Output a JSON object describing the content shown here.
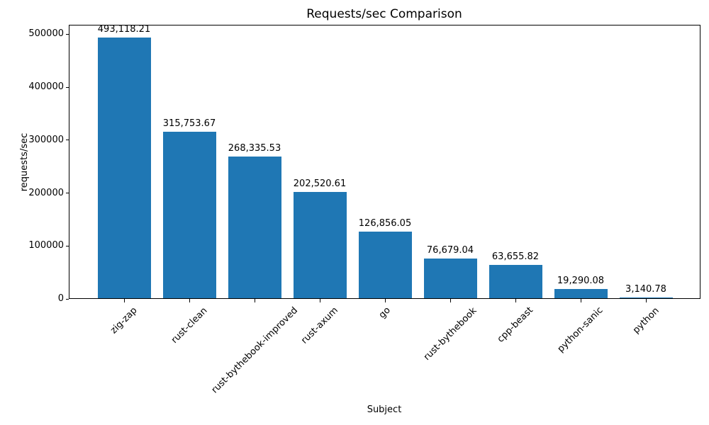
{
  "chart_data": {
    "type": "bar",
    "title": "Requests/sec Comparison",
    "xlabel": "Subject",
    "ylabel": "requests/sec",
    "categories": [
      "zig-zap",
      "rust-clean",
      "rust-bythebook-improved",
      "rust-axum",
      "go",
      "rust-bythebook",
      "cpp-beast",
      "python-sanic",
      "python"
    ],
    "values": [
      493118.21,
      315753.67,
      268335.53,
      202520.61,
      126856.05,
      76679.04,
      63655.82,
      19290.08,
      3140.78
    ],
    "bar_labels": [
      "493,118.21",
      "315,753.67",
      "268,335.53",
      "202,520.61",
      "126,856.05",
      "76,679.04",
      "63,655.82",
      "19,290.08",
      "3,140.78"
    ],
    "yticks": [
      0,
      100000,
      200000,
      300000,
      400000,
      500000
    ],
    "ytick_labels": [
      "0",
      "100000",
      "200000",
      "300000",
      "400000",
      "500000"
    ],
    "ylim": [
      0,
      517774
    ],
    "bar_color": "#1f77b4",
    "grid": false,
    "legend": null
  }
}
